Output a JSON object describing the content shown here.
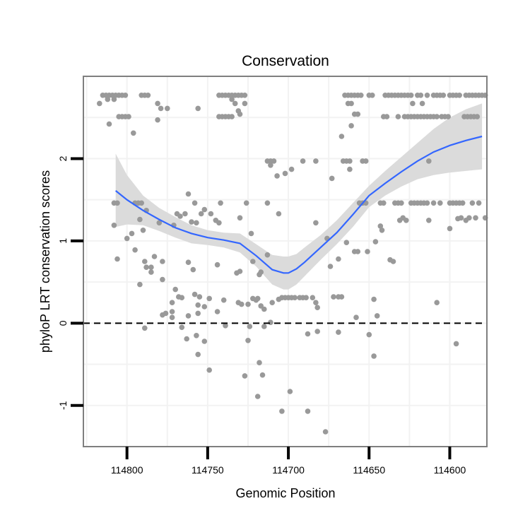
{
  "chart_data": {
    "type": "scatter",
    "title": "Conservation",
    "xlabel": "Genomic Position",
    "ylabel": "phyloP LRT conservation scores",
    "x_reversed": true,
    "xlim": [
      114577,
      114827
    ],
    "ylim": [
      -1.5,
      3.0
    ],
    "x_ticks": [
      114800,
      114750,
      114700,
      114650,
      114600
    ],
    "x_tick_labels": [
      "114800",
      "114750",
      "114700",
      "114650",
      "114600"
    ],
    "y_ticks": [
      -1,
      0,
      1,
      2
    ],
    "y_tick_labels": [
      "-1",
      "0",
      "1",
      "2"
    ],
    "reference_line": {
      "y": 0,
      "style": "dashed"
    },
    "grid": true,
    "colors": {
      "points": "#999999",
      "smooth": "#3366ff",
      "ribbon": "#d9d9d9",
      "grid": "#f2f2f2",
      "frame": "#7f7f7f"
    },
    "smooth": {
      "x": [
        114807,
        114800,
        114790,
        114780,
        114770,
        114760,
        114750,
        114740,
        114730,
        114720,
        114710,
        114703,
        114700,
        114695,
        114690,
        114680,
        114670,
        114660,
        114650,
        114640,
        114630,
        114620,
        114610,
        114600,
        114590,
        114580
      ],
      "y": [
        1.61,
        1.5,
        1.37,
        1.26,
        1.16,
        1.09,
        1.04,
        1.01,
        0.97,
        0.82,
        0.65,
        0.61,
        0.61,
        0.66,
        0.74,
        0.92,
        1.1,
        1.32,
        1.55,
        1.7,
        1.84,
        1.97,
        2.08,
        2.16,
        2.22,
        2.27
      ],
      "upper": [
        2.06,
        1.8,
        1.55,
        1.4,
        1.29,
        1.19,
        1.13,
        1.1,
        1.09,
        0.96,
        0.83,
        0.81,
        0.81,
        0.84,
        0.92,
        1.07,
        1.25,
        1.46,
        1.67,
        1.85,
        2.02,
        2.19,
        2.36,
        2.5,
        2.6,
        2.67
      ],
      "lower": [
        1.17,
        1.2,
        1.19,
        1.12,
        1.04,
        0.97,
        0.95,
        0.92,
        0.86,
        0.69,
        0.47,
        0.41,
        0.41,
        0.47,
        0.57,
        0.77,
        0.96,
        1.17,
        1.41,
        1.55,
        1.66,
        1.75,
        1.8,
        1.83,
        1.85,
        1.87
      ]
    },
    "points": [
      [
        114815,
        2.77
      ],
      [
        114813,
        2.77
      ],
      [
        114811,
        2.77
      ],
      [
        114809,
        2.77
      ],
      [
        114807,
        2.77
      ],
      [
        114805,
        2.77
      ],
      [
        114803,
        2.77
      ],
      [
        114801,
        2.77
      ],
      [
        114791,
        2.77
      ],
      [
        114789,
        2.77
      ],
      [
        114787,
        2.77
      ],
      [
        114743,
        2.77
      ],
      [
        114741,
        2.77
      ],
      [
        114739,
        2.77
      ],
      [
        114737,
        2.77
      ],
      [
        114735,
        2.77
      ],
      [
        114733,
        2.77
      ],
      [
        114731,
        2.77
      ],
      [
        114729,
        2.77
      ],
      [
        114727,
        2.77
      ],
      [
        114665,
        2.77
      ],
      [
        114663,
        2.77
      ],
      [
        114661,
        2.77
      ],
      [
        114659,
        2.77
      ],
      [
        114657,
        2.77
      ],
      [
        114655,
        2.77
      ],
      [
        114650,
        2.77
      ],
      [
        114648,
        2.77
      ],
      [
        114640,
        2.77
      ],
      [
        114638,
        2.77
      ],
      [
        114636,
        2.77
      ],
      [
        114634,
        2.77
      ],
      [
        114632,
        2.77
      ],
      [
        114630,
        2.77
      ],
      [
        114628,
        2.77
      ],
      [
        114626,
        2.77
      ],
      [
        114624,
        2.77
      ],
      [
        114620,
        2.77
      ],
      [
        114618,
        2.77
      ],
      [
        114614,
        2.77
      ],
      [
        114610,
        2.77
      ],
      [
        114608,
        2.77
      ],
      [
        114606,
        2.77
      ],
      [
        114604,
        2.77
      ],
      [
        114600,
        2.77
      ],
      [
        114598,
        2.77
      ],
      [
        114596,
        2.77
      ],
      [
        114594,
        2.77
      ],
      [
        114590,
        2.77
      ],
      [
        114588,
        2.77
      ],
      [
        114586,
        2.77
      ],
      [
        114584,
        2.77
      ],
      [
        114582,
        2.77
      ],
      [
        114580,
        2.77
      ],
      [
        114578,
        2.77
      ],
      [
        114812,
        2.72
      ],
      [
        114808,
        2.72
      ],
      [
        114735,
        2.72
      ],
      [
        114817,
        2.67
      ],
      [
        114781,
        2.67
      ],
      [
        114733,
        2.67
      ],
      [
        114727,
        2.67
      ],
      [
        114663,
        2.67
      ],
      [
        114661,
        2.67
      ],
      [
        114623,
        2.67
      ],
      [
        114617,
        2.67
      ],
      [
        114779,
        2.61
      ],
      [
        114775,
        2.61
      ],
      [
        114756,
        2.61
      ],
      [
        114731,
        2.58
      ],
      [
        114805,
        2.51
      ],
      [
        114803,
        2.51
      ],
      [
        114801,
        2.51
      ],
      [
        114799,
        2.51
      ],
      [
        114743,
        2.51
      ],
      [
        114741,
        2.51
      ],
      [
        114739,
        2.51
      ],
      [
        114737,
        2.51
      ],
      [
        114735,
        2.51
      ],
      [
        114730,
        2.54
      ],
      [
        114659,
        2.54
      ],
      [
        114657,
        2.54
      ],
      [
        114641,
        2.51
      ],
      [
        114639,
        2.51
      ],
      [
        114632,
        2.51
      ],
      [
        114628,
        2.51
      ],
      [
        114626,
        2.51
      ],
      [
        114624,
        2.51
      ],
      [
        114622,
        2.51
      ],
      [
        114620,
        2.51
      ],
      [
        114618,
        2.51
      ],
      [
        114616,
        2.51
      ],
      [
        114614,
        2.51
      ],
      [
        114612,
        2.51
      ],
      [
        114610,
        2.51
      ],
      [
        114608,
        2.51
      ],
      [
        114605,
        2.51
      ],
      [
        114603,
        2.51
      ],
      [
        114601,
        2.51
      ],
      [
        114591,
        2.51
      ],
      [
        114589,
        2.51
      ],
      [
        114587,
        2.51
      ],
      [
        114585,
        2.51
      ],
      [
        114583,
        2.51
      ],
      [
        114781,
        2.47
      ],
      [
        114811,
        2.42
      ],
      [
        114661,
        2.4
      ],
      [
        114796,
        2.31
      ],
      [
        114667,
        2.27
      ],
      [
        114713,
        1.97
      ],
      [
        114711,
        1.97
      ],
      [
        114709,
        1.97
      ],
      [
        114691,
        1.97
      ],
      [
        114683,
        1.97
      ],
      [
        114666,
        1.97
      ],
      [
        114664,
        1.97
      ],
      [
        114662,
        1.97
      ],
      [
        114654,
        1.97
      ],
      [
        114652,
        1.97
      ],
      [
        114613,
        1.97
      ],
      [
        114711,
        1.92
      ],
      [
        114698,
        1.87
      ],
      [
        114662,
        1.87
      ],
      [
        114702,
        1.82
      ],
      [
        114707,
        1.79
      ],
      [
        114673,
        1.76
      ],
      [
        114762,
        1.57
      ],
      [
        114656,
        1.46
      ],
      [
        114654,
        1.46
      ],
      [
        114652,
        1.46
      ],
      [
        114643,
        1.46
      ],
      [
        114641,
        1.46
      ],
      [
        114634,
        1.46
      ],
      [
        114632,
        1.46
      ],
      [
        114630,
        1.46
      ],
      [
        114624,
        1.46
      ],
      [
        114622,
        1.46
      ],
      [
        114620,
        1.46
      ],
      [
        114618,
        1.46
      ],
      [
        114616,
        1.46
      ],
      [
        114614,
        1.46
      ],
      [
        114610,
        1.46
      ],
      [
        114606,
        1.46
      ],
      [
        114600,
        1.46
      ],
      [
        114598,
        1.46
      ],
      [
        114596,
        1.46
      ],
      [
        114594,
        1.46
      ],
      [
        114592,
        1.46
      ],
      [
        114586,
        1.46
      ],
      [
        114582,
        1.46
      ],
      [
        114808,
        1.46
      ],
      [
        114806,
        1.46
      ],
      [
        114795,
        1.46
      ],
      [
        114793,
        1.46
      ],
      [
        114791,
        1.46
      ],
      [
        114758,
        1.46
      ],
      [
        114742,
        1.46
      ],
      [
        114726,
        1.46
      ],
      [
        114713,
        1.46
      ],
      [
        114752,
        1.38
      ],
      [
        114788,
        1.37
      ],
      [
        114764,
        1.33
      ],
      [
        114769,
        1.33
      ],
      [
        114754,
        1.33
      ],
      [
        114748,
        1.33
      ],
      [
        114767,
        1.3
      ],
      [
        114706,
        1.33
      ],
      [
        114631,
        1.25
      ],
      [
        114629,
        1.28
      ],
      [
        114627,
        1.25
      ],
      [
        114613,
        1.25
      ],
      [
        114595,
        1.27
      ],
      [
        114593,
        1.28
      ],
      [
        114590,
        1.25
      ],
      [
        114588,
        1.28
      ],
      [
        114584,
        1.28
      ],
      [
        114578,
        1.28
      ],
      [
        114745,
        1.25
      ],
      [
        114743,
        1.22
      ],
      [
        114760,
        1.23
      ],
      [
        114757,
        1.22
      ],
      [
        114792,
        1.26
      ],
      [
        114780,
        1.22
      ],
      [
        114730,
        1.28
      ],
      [
        114683,
        1.22
      ],
      [
        114771,
        1.19
      ],
      [
        114808,
        1.19
      ],
      [
        114643,
        1.18
      ],
      [
        114790,
        1.13
      ],
      [
        114642,
        1.13
      ],
      [
        114797,
        1.09
      ],
      [
        114723,
        1.09
      ],
      [
        114600,
        1.15
      ],
      [
        114800,
        1.03
      ],
      [
        114676,
        1.03
      ],
      [
        114664,
        0.98
      ],
      [
        114646,
        0.99
      ],
      [
        114795,
        0.89
      ],
      [
        114783,
        0.81
      ],
      [
        114789,
        0.75
      ],
      [
        114778,
        0.75
      ],
      [
        114762,
        0.74
      ],
      [
        114759,
        0.65
      ],
      [
        114744,
        0.71
      ],
      [
        114730,
        0.63
      ],
      [
        114722,
        0.75
      ],
      [
        114732,
        0.61
      ],
      [
        114713,
        0.83
      ],
      [
        114669,
        0.78
      ],
      [
        114659,
        0.87
      ],
      [
        114657,
        0.87
      ],
      [
        114651,
        0.87
      ],
      [
        114637,
        0.77
      ],
      [
        114635,
        0.75
      ],
      [
        114718,
        0.59
      ],
      [
        114717,
        0.62
      ],
      [
        114788,
        0.68
      ],
      [
        114785,
        0.68
      ],
      [
        114785,
        0.62
      ],
      [
        114806,
        0.78
      ],
      [
        114674,
        0.69
      ],
      [
        114778,
        0.53
      ],
      [
        114792,
        0.47
      ],
      [
        114770,
        0.41
      ],
      [
        114768,
        0.32
      ],
      [
        114766,
        0.31
      ],
      [
        114758,
        0.35
      ],
      [
        114755,
        0.32
      ],
      [
        114749,
        0.3
      ],
      [
        114722,
        0.3
      ],
      [
        114719,
        0.3
      ],
      [
        114731,
        0.25
      ],
      [
        114729,
        0.23
      ],
      [
        114725,
        0.23
      ],
      [
        114740,
        0.28
      ],
      [
        114756,
        0.22
      ],
      [
        114720,
        0.28
      ],
      [
        114717,
        0.21
      ],
      [
        114710,
        0.25
      ],
      [
        114706,
        0.29
      ],
      [
        114704,
        0.31
      ],
      [
        114702,
        0.31
      ],
      [
        114700,
        0.31
      ],
      [
        114698,
        0.31
      ],
      [
        114696,
        0.31
      ],
      [
        114693,
        0.31
      ],
      [
        114691,
        0.31
      ],
      [
        114689,
        0.31
      ],
      [
        114685,
        0.31
      ],
      [
        114683,
        0.25
      ],
      [
        114682,
        0.19
      ],
      [
        114672,
        0.32
      ],
      [
        114669,
        0.32
      ],
      [
        114667,
        0.32
      ],
      [
        114647,
        0.29
      ],
      [
        114772,
        0.25
      ],
      [
        114715,
        0.17
      ],
      [
        114752,
        0.2
      ],
      [
        114756,
        0.12
      ],
      [
        114778,
        0.1
      ],
      [
        114776,
        0.12
      ],
      [
        114772,
        0.14
      ],
      [
        114762,
        0.09
      ],
      [
        114658,
        0.07
      ],
      [
        114645,
        0.09
      ],
      [
        114608,
        0.25
      ],
      [
        114772,
        0.07
      ],
      [
        114744,
        0.14
      ],
      [
        114711,
        0.01
      ],
      [
        114715,
        -0.04
      ],
      [
        114724,
        -0.04
      ],
      [
        114739,
        -0.03
      ],
      [
        114789,
        -0.06
      ],
      [
        114766,
        -0.05
      ],
      [
        114757,
        -0.15
      ],
      [
        114682,
        -0.1
      ],
      [
        114669,
        -0.11
      ],
      [
        114650,
        -0.14
      ],
      [
        114763,
        -0.19
      ],
      [
        114752,
        -0.22
      ],
      [
        114725,
        -0.21
      ],
      [
        114688,
        -0.13
      ],
      [
        114756,
        -0.38
      ],
      [
        114647,
        -0.4
      ],
      [
        114596,
        -0.25
      ],
      [
        114749,
        -0.57
      ],
      [
        114718,
        -0.48
      ],
      [
        114716,
        -0.63
      ],
      [
        114727,
        -0.64
      ],
      [
        114699,
        -0.83
      ],
      [
        114719,
        -0.89
      ],
      [
        114704,
        -1.07
      ],
      [
        114688,
        -1.07
      ],
      [
        114677,
        -1.32
      ]
    ]
  }
}
